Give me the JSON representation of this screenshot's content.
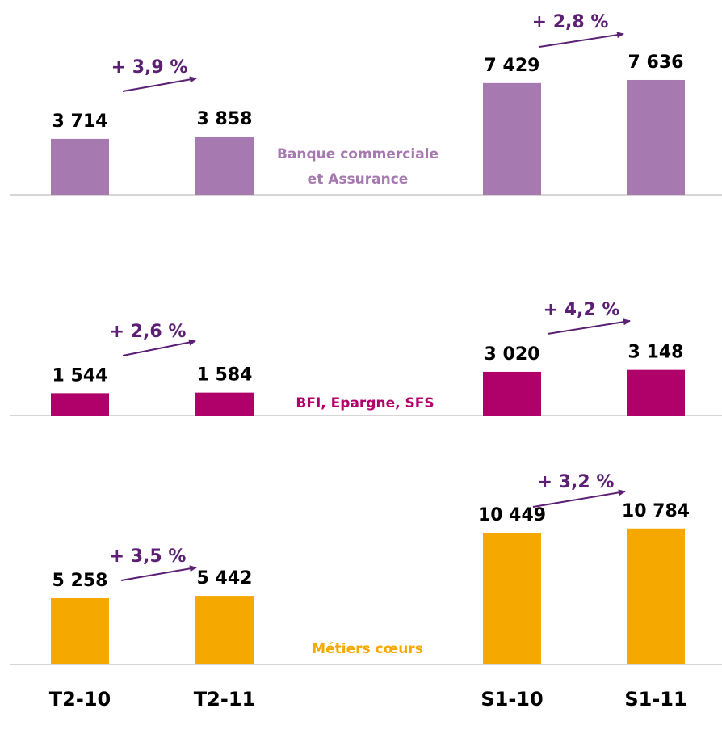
{
  "chart_data": [
    {
      "type": "bar",
      "label": [
        "Banque commerciale",
        "et Assurance"
      ],
      "color": "#a679b0",
      "values": [
        3714,
        3858,
        7429,
        7636
      ],
      "value_labels": [
        "3 714",
        "3 858",
        "7 429",
        "7 636"
      ],
      "annotations": [
        "+ 3,9 %",
        "+ 2,8 %"
      ]
    },
    {
      "type": "bar",
      "label": [
        "BFI, Epargne, SFS"
      ],
      "color": "#b0006a",
      "values": [
        1544,
        1584,
        3020,
        3148
      ],
      "value_labels": [
        "1 544",
        "1 584",
        "3 020",
        "3 148"
      ],
      "annotations": [
        "+ 2,6 %",
        "+ 4,2 %"
      ]
    },
    {
      "type": "bar",
      "label": [
        "Métiers cœurs"
      ],
      "color": "#f5a800",
      "categories": [
        "T2-10",
        "T2-11",
        "S1-10",
        "S1-11"
      ],
      "values": [
        5258,
        5442,
        10449,
        10784
      ],
      "value_labels": [
        "5 258",
        "5 442",
        "10 449",
        "10 784"
      ],
      "annotations": [
        "+ 3,5 %",
        "+ 3,2 %"
      ]
    }
  ]
}
